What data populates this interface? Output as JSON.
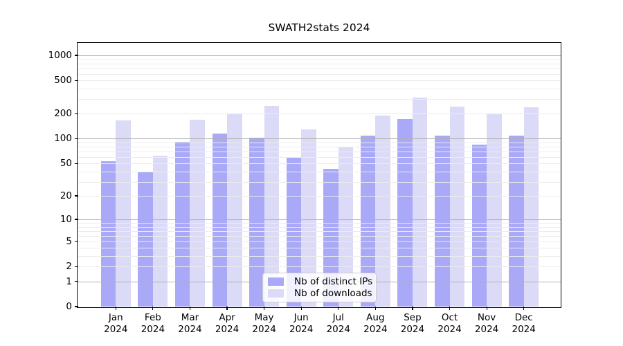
{
  "title": "SWATH2stats 2024",
  "colors": {
    "bar_distinct_ips": "#a9a9f8",
    "bar_downloads": "#dbdbf8",
    "major_grid": "#b0b0b0",
    "minor_grid": "#ececec",
    "frame": "#000000",
    "background": "#ffffff"
  },
  "chart_data": {
    "type": "bar",
    "title": "SWATH2stats 2024",
    "categories": [
      {
        "month": "Jan",
        "year": "2024"
      },
      {
        "month": "Feb",
        "year": "2024"
      },
      {
        "month": "Mar",
        "year": "2024"
      },
      {
        "month": "Apr",
        "year": "2024"
      },
      {
        "month": "May",
        "year": "2024"
      },
      {
        "month": "Jun",
        "year": "2024"
      },
      {
        "month": "Jul",
        "year": "2024"
      },
      {
        "month": "Aug",
        "year": "2024"
      },
      {
        "month": "Sep",
        "year": "2024"
      },
      {
        "month": "Oct",
        "year": "2024"
      },
      {
        "month": "Nov",
        "year": "2024"
      },
      {
        "month": "Dec",
        "year": "2024"
      }
    ],
    "series": [
      {
        "name": "Nb of distinct IPs",
        "color": "#a9a9f8",
        "values": [
          53,
          40,
          92,
          116,
          103,
          59,
          43,
          108,
          172,
          110,
          85,
          108
        ]
      },
      {
        "name": "Nb of downloads",
        "color": "#dbdbf8",
        "values": [
          166,
          62,
          168,
          202,
          246,
          130,
          78,
          190,
          315,
          245,
          202,
          238
        ]
      }
    ],
    "y_axis": {
      "scale": "log10(value+1)",
      "tick_values": [
        1000,
        500,
        200,
        100,
        50,
        20,
        10,
        5,
        2,
        1,
        0
      ],
      "tick_labels": [
        "1000",
        "500",
        "200",
        "100",
        "50",
        "20",
        "10",
        "5",
        "2",
        "1",
        "0"
      ],
      "major_gridlines": [
        1,
        10,
        100,
        1000
      ],
      "minor_gridlines_per_decade": [
        2,
        3,
        4,
        5,
        6,
        7,
        8,
        9
      ],
      "range": [
        0,
        1400
      ]
    },
    "x_axis": {
      "tick_labels": [
        "Jan 2024",
        "Feb 2024",
        "Mar 2024",
        "Apr 2024",
        "May 2024",
        "Jun 2024",
        "Jul 2024",
        "Aug 2024",
        "Sep 2024",
        "Oct 2024",
        "Nov 2024",
        "Dec 2024"
      ]
    },
    "legend": {
      "position": "lower center",
      "entries": [
        "Nb of distinct IPs",
        "Nb of downloads"
      ]
    },
    "grid": true
  }
}
